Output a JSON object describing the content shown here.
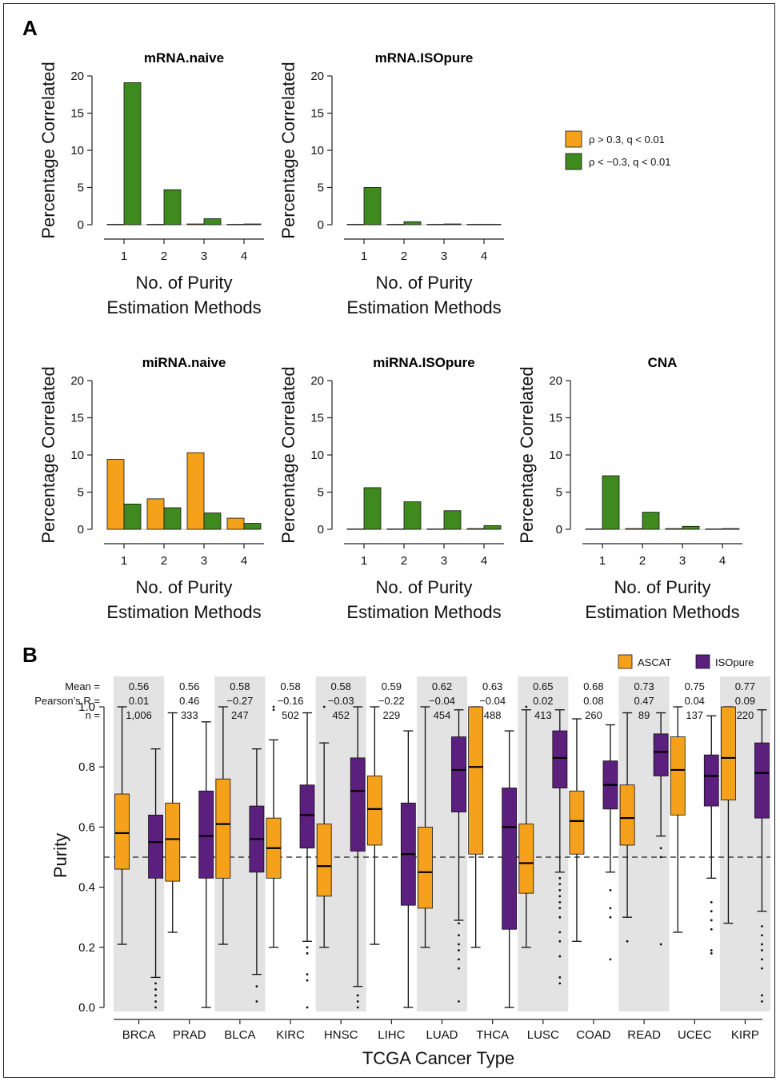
{
  "colors": {
    "orange": "#F5A11C",
    "green": "#3F8A1E",
    "purple": "#5B1F7D",
    "shade": "#E3E3E3"
  },
  "panel_a_label": "A",
  "panel_b_label": "B",
  "legend_a": [
    {
      "label": "ρ > 0.3, q < 0.01",
      "color": "#F5A11C"
    },
    {
      "label": "ρ < −0.3, q < 0.01",
      "color": "#3F8A1E"
    }
  ],
  "legend_b": [
    {
      "label": "ASCAT",
      "color": "#F5A11C"
    },
    {
      "label": "ISOpure",
      "color": "#5B1F7D"
    }
  ],
  "stat_labels": {
    "mean": "Mean =",
    "pearson": "Pearson’s R =",
    "n": "n ="
  },
  "chart_data": [
    {
      "type": "bar",
      "title": "mRNA.naive",
      "xlabel_line1": "No. of Purity",
      "xlabel_line2": "Estimation Methods",
      "ylabel": "Percentage Correlated",
      "categories": [
        "1",
        "2",
        "3",
        "4"
      ],
      "ylim": [
        0,
        20
      ],
      "yticks": [
        0,
        5,
        10,
        15,
        20
      ],
      "series": [
        {
          "name": "ρ > 0.3, q < 0.01",
          "values": [
            0.05,
            0.05,
            0.1,
            0.05
          ]
        },
        {
          "name": "ρ < −0.3, q < 0.01",
          "values": [
            19.1,
            4.7,
            0.8,
            0.1
          ]
        }
      ]
    },
    {
      "type": "bar",
      "title": "mRNA.ISOpure",
      "xlabel_line1": "No. of Purity",
      "xlabel_line2": "Estimation Methods",
      "ylabel": "Percentage Correlated",
      "categories": [
        "1",
        "2",
        "3",
        "4"
      ],
      "ylim": [
        0,
        20
      ],
      "yticks": [
        0,
        5,
        10,
        15,
        20
      ],
      "series": [
        {
          "name": "ρ > 0.3, q < 0.01",
          "values": [
            0.05,
            0.05,
            0.05,
            0.05
          ]
        },
        {
          "name": "ρ < −0.3, q < 0.01",
          "values": [
            5.0,
            0.4,
            0.1,
            0.05
          ]
        }
      ]
    },
    {
      "type": "bar",
      "title": "miRNA.naive",
      "xlabel_line1": "No. of Purity",
      "xlabel_line2": "Estimation Methods",
      "ylabel": "Percentage Correlated",
      "categories": [
        "1",
        "2",
        "3",
        "4"
      ],
      "ylim": [
        0,
        20
      ],
      "yticks": [
        0,
        5,
        10,
        15,
        20
      ],
      "series": [
        {
          "name": "ρ > 0.3, q < 0.01",
          "values": [
            9.4,
            4.1,
            10.3,
            1.5
          ]
        },
        {
          "name": "ρ < −0.3, q < 0.01",
          "values": [
            3.4,
            2.9,
            2.2,
            0.8
          ]
        }
      ]
    },
    {
      "type": "bar",
      "title": "miRNA.ISOpure",
      "xlabel_line1": "No. of Purity",
      "xlabel_line2": "Estimation Methods",
      "ylabel": "Percentage Correlated",
      "categories": [
        "1",
        "2",
        "3",
        "4"
      ],
      "ylim": [
        0,
        20
      ],
      "yticks": [
        0,
        5,
        10,
        15,
        20
      ],
      "series": [
        {
          "name": "ρ > 0.3, q < 0.01",
          "values": [
            0.05,
            0.05,
            0.05,
            0.1
          ]
        },
        {
          "name": "ρ < −0.3, q < 0.01",
          "values": [
            5.6,
            3.7,
            2.5,
            0.5
          ]
        }
      ]
    },
    {
      "type": "bar",
      "title": "CNA",
      "xlabel_line1": "No. of Purity",
      "xlabel_line2": "Estimation Methods",
      "ylabel": "Percentage Correlated",
      "categories": [
        "1",
        "2",
        "3",
        "4"
      ],
      "ylim": [
        0,
        20
      ],
      "yticks": [
        0,
        5,
        10,
        15,
        20
      ],
      "series": [
        {
          "name": "ρ > 0.3, q < 0.01",
          "values": [
            0.05,
            0.1,
            0.1,
            0.05
          ]
        },
        {
          "name": "ρ < −0.3, q < 0.01",
          "values": [
            7.2,
            2.3,
            0.4,
            0.1
          ]
        }
      ]
    },
    {
      "type": "box",
      "xlabel": "TCGA Cancer Type",
      "ylabel": "Purity",
      "ylim": [
        0,
        1
      ],
      "yticks": [
        "0.0",
        "0.2",
        "0.4",
        "0.6",
        "0.8",
        "1.0"
      ],
      "reference_line": 0.5,
      "categories": [
        "BRCA",
        "PRAD",
        "BLCA",
        "KIRC",
        "HNSC",
        "LIHC",
        "LUAD",
        "THCA",
        "LUSC",
        "COAD",
        "READ",
        "UCEC",
        "KIRP"
      ],
      "mean": [
        "0.56",
        "0.56",
        "0.58",
        "0.58",
        "0.58",
        "0.59",
        "0.62",
        "0.63",
        "0.65",
        "0.68",
        "0.73",
        "0.75",
        "0.77"
      ],
      "pearson_r": [
        "0.01",
        "0.46",
        "−0.27",
        "−0.16",
        "−0.03",
        "−0.22",
        "−0.04",
        "−0.04",
        "0.02",
        "0.08",
        "0.47",
        "0.04",
        "0.09"
      ],
      "n": [
        "1,006",
        "333",
        "247",
        "502",
        "452",
        "229",
        "454",
        "488",
        "413",
        "260",
        "89",
        "137",
        "220"
      ],
      "series": [
        {
          "name": "ASCAT",
          "boxes": [
            {
              "whislo": 0.21,
              "q1": 0.46,
              "med": 0.58,
              "q3": 0.71,
              "whishi": 1.0,
              "fliers": []
            },
            {
              "whislo": 0.25,
              "q1": 0.42,
              "med": 0.56,
              "q3": 0.68,
              "whishi": 0.98,
              "fliers": []
            },
            {
              "whislo": 0.21,
              "q1": 0.43,
              "med": 0.61,
              "q3": 0.76,
              "whishi": 1.0,
              "fliers": []
            },
            {
              "whislo": 0.2,
              "q1": 0.43,
              "med": 0.53,
              "q3": 0.63,
              "whishi": 0.89,
              "fliers": [
                0.99,
                1.0
              ]
            },
            {
              "whislo": 0.2,
              "q1": 0.37,
              "med": 0.47,
              "q3": 0.61,
              "whishi": 0.88,
              "fliers": [
                1.0
              ]
            },
            {
              "whislo": 0.21,
              "q1": 0.54,
              "med": 0.66,
              "q3": 0.77,
              "whishi": 1.0,
              "fliers": []
            },
            {
              "whislo": 0.2,
              "q1": 0.33,
              "med": 0.45,
              "q3": 0.6,
              "whishi": 1.0,
              "fliers": []
            },
            {
              "whislo": 0.2,
              "q1": 0.51,
              "med": 0.8,
              "q3": 1.0,
              "whishi": 1.0,
              "fliers": []
            },
            {
              "whislo": 0.2,
              "q1": 0.38,
              "med": 0.48,
              "q3": 0.61,
              "whishi": 0.99,
              "fliers": [
                1.0
              ]
            },
            {
              "whislo": 0.22,
              "q1": 0.51,
              "med": 0.62,
              "q3": 0.72,
              "whishi": 0.96,
              "fliers": []
            },
            {
              "whislo": 0.3,
              "q1": 0.54,
              "med": 0.63,
              "q3": 0.74,
              "whishi": 0.98,
              "fliers": [
                0.22
              ]
            },
            {
              "whislo": 0.25,
              "q1": 0.64,
              "med": 0.79,
              "q3": 0.9,
              "whishi": 1.0,
              "fliers": []
            },
            {
              "whislo": 0.28,
              "q1": 0.69,
              "med": 0.83,
              "q3": 1.0,
              "whishi": 1.0,
              "fliers": []
            }
          ]
        },
        {
          "name": "ISOpure",
          "boxes": [
            {
              "whislo": 0.1,
              "q1": 0.43,
              "med": 0.55,
              "q3": 0.64,
              "whishi": 0.86,
              "fliers": [
                0.0,
                0.02,
                0.04,
                0.06,
                0.08
              ]
            },
            {
              "whislo": 0.0,
              "q1": 0.43,
              "med": 0.57,
              "q3": 0.72,
              "whishi": 0.95,
              "fliers": []
            },
            {
              "whislo": 0.11,
              "q1": 0.45,
              "med": 0.56,
              "q3": 0.67,
              "whishi": 0.86,
              "fliers": [
                0.02,
                0.07
              ]
            },
            {
              "whislo": 0.22,
              "q1": 0.53,
              "med": 0.64,
              "q3": 0.74,
              "whishi": 0.98,
              "fliers": [
                0.0,
                0.09,
                0.11,
                0.18,
                0.2
              ]
            },
            {
              "whislo": 0.07,
              "q1": 0.52,
              "med": 0.72,
              "q3": 0.83,
              "whishi": 1.0,
              "fliers": [
                0.0,
                0.02,
                0.04
              ]
            },
            {
              "whislo": 0.0,
              "q1": 0.34,
              "med": 0.51,
              "q3": 0.68,
              "whishi": 0.92,
              "fliers": []
            },
            {
              "whislo": 0.29,
              "q1": 0.65,
              "med": 0.79,
              "q3": 0.9,
              "whishi": 0.99,
              "fliers": [
                0.02,
                0.13,
                0.16,
                0.19,
                0.21,
                0.24,
                0.28
              ]
            },
            {
              "whislo": 0.0,
              "q1": 0.26,
              "med": 0.6,
              "q3": 0.73,
              "whishi": 0.92,
              "fliers": []
            },
            {
              "whislo": 0.45,
              "q1": 0.73,
              "med": 0.83,
              "q3": 0.92,
              "whishi": 0.99,
              "fliers": [
                0.08,
                0.1,
                0.17,
                0.22,
                0.25,
                0.3,
                0.33,
                0.35,
                0.37,
                0.39,
                0.41,
                0.43
              ]
            },
            {
              "whislo": 0.45,
              "q1": 0.66,
              "med": 0.74,
              "q3": 0.82,
              "whishi": 0.94,
              "fliers": [
                0.16,
                0.3,
                0.33,
                0.39
              ]
            },
            {
              "whislo": 0.57,
              "q1": 0.77,
              "med": 0.85,
              "q3": 0.91,
              "whishi": 0.98,
              "fliers": [
                0.21,
                0.5,
                0.53
              ]
            },
            {
              "whislo": 0.43,
              "q1": 0.67,
              "med": 0.77,
              "q3": 0.84,
              "whishi": 0.97,
              "fliers": [
                0.18,
                0.19,
                0.26,
                0.29,
                0.32,
                0.35
              ]
            },
            {
              "whislo": 0.32,
              "q1": 0.63,
              "med": 0.78,
              "q3": 0.88,
              "whishi": 0.99,
              "fliers": [
                0.02,
                0.04,
                0.13,
                0.16,
                0.19,
                0.21,
                0.24,
                0.27
              ]
            }
          ]
        }
      ]
    }
  ]
}
